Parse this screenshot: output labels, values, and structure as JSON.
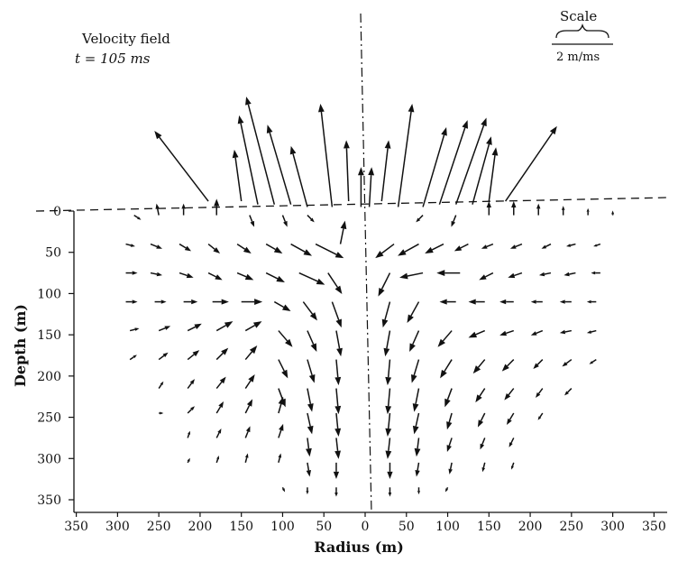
{
  "chart_data": {
    "type": "vector-field",
    "annotation": {
      "line1": "Velocity field",
      "line2": "t = 105 ms"
    },
    "scale": {
      "title": "Scale",
      "value_label": "2 m/ms",
      "speed": 2,
      "unit": "m/ms"
    },
    "xlabel": "Radius (m)",
    "ylabel": "Depth (m)",
    "x_ticks": [
      {
        "label": "350",
        "value": -350
      },
      {
        "label": "300",
        "value": -300
      },
      {
        "label": "250",
        "value": -250
      },
      {
        "label": "200",
        "value": -200
      },
      {
        "label": "150",
        "value": -150
      },
      {
        "label": "100",
        "value": -100
      },
      {
        "label": "50",
        "value": -50
      },
      {
        "label": "0",
        "value": 0
      },
      {
        "label": "50",
        "value": 50
      },
      {
        "label": "100",
        "value": 100
      },
      {
        "label": "150",
        "value": 150
      },
      {
        "label": "200",
        "value": 200
      },
      {
        "label": "250",
        "value": 250
      },
      {
        "label": "300",
        "value": 300
      },
      {
        "label": "350",
        "value": 350
      }
    ],
    "y_ticks": [
      {
        "label": "0",
        "value": 0
      },
      {
        "label": "50",
        "value": 50
      },
      {
        "label": "100",
        "value": 100
      },
      {
        "label": "150",
        "value": 150
      },
      {
        "label": "200",
        "value": 200
      },
      {
        "label": "250",
        "value": 250
      },
      {
        "label": "300",
        "value": 300
      },
      {
        "label": "350",
        "value": 350
      }
    ],
    "xlim": [
      -350,
      350
    ],
    "ylim": [
      0,
      350
    ],
    "ground_surface": "dashed line at depth 0",
    "symmetry_axis": "dash-dot line at radius 0",
    "vectors": [
      {
        "x": -190,
        "d": -12,
        "vr": -2.3,
        "vz": -3.0
      },
      {
        "x": -150,
        "d": -12,
        "vr": -0.3,
        "vz": -2.2
      },
      {
        "x": -130,
        "d": -8,
        "vr": -0.8,
        "vz": -3.8
      },
      {
        "x": -110,
        "d": -8,
        "vr": -1.2,
        "vz": -4.6
      },
      {
        "x": -90,
        "d": -8,
        "vr": -1.0,
        "vz": -3.4
      },
      {
        "x": -70,
        "d": -5,
        "vr": -0.7,
        "vz": -2.6
      },
      {
        "x": -40,
        "d": -5,
        "vr": -0.5,
        "vz": -4.4
      },
      {
        "x": -20,
        "d": -12,
        "vr": -0.1,
        "vz": -2.6
      },
      {
        "x": -5,
        "d": -5,
        "vr": 0.0,
        "vz": -1.7
      },
      {
        "x": 5,
        "d": -5,
        "vr": 0.1,
        "vz": -1.7
      },
      {
        "x": 20,
        "d": -12,
        "vr": 0.3,
        "vz": -2.6
      },
      {
        "x": 40,
        "d": -5,
        "vr": 0.6,
        "vz": -4.4
      },
      {
        "x": 70,
        "d": -5,
        "vr": 1.0,
        "vz": -3.4
      },
      {
        "x": 90,
        "d": -8,
        "vr": 1.2,
        "vz": -3.6
      },
      {
        "x": 110,
        "d": -8,
        "vr": 1.3,
        "vz": -3.7
      },
      {
        "x": 130,
        "d": -8,
        "vr": 0.8,
        "vz": -2.9
      },
      {
        "x": 150,
        "d": -12,
        "vr": 0.3,
        "vz": -2.3
      },
      {
        "x": 170,
        "d": -12,
        "vr": 2.2,
        "vz": -3.2
      },
      {
        "x": -280,
        "d": 5,
        "vr": 0.3,
        "vz": 0.2
      },
      {
        "x": -250,
        "d": 5,
        "vr": -0.1,
        "vz": -0.5
      },
      {
        "x": -220,
        "d": 5,
        "vr": 0.0,
        "vz": -0.5
      },
      {
        "x": -180,
        "d": 5,
        "vr": 0.0,
        "vz": -0.7
      },
      {
        "x": -140,
        "d": 5,
        "vr": 0.2,
        "vz": 0.5
      },
      {
        "x": -100,
        "d": 5,
        "vr": 0.2,
        "vz": 0.5
      },
      {
        "x": -70,
        "d": 5,
        "vr": 0.3,
        "vz": 0.3
      },
      {
        "x": 70,
        "d": 5,
        "vr": -0.3,
        "vz": 0.3
      },
      {
        "x": 110,
        "d": 5,
        "vr": -0.2,
        "vz": 0.5
      },
      {
        "x": 150,
        "d": 5,
        "vr": 0.0,
        "vz": -0.6
      },
      {
        "x": 180,
        "d": 5,
        "vr": 0.0,
        "vz": -0.6
      },
      {
        "x": 210,
        "d": 5,
        "vr": 0.0,
        "vz": -0.5
      },
      {
        "x": 240,
        "d": 5,
        "vr": 0.0,
        "vz": -0.4
      },
      {
        "x": 270,
        "d": 5,
        "vr": 0.0,
        "vz": -0.3
      },
      {
        "x": 300,
        "d": 5,
        "vr": 0.0,
        "vz": -0.2
      },
      {
        "x": -290,
        "d": 40,
        "vr": 0.4,
        "vz": 0.1
      },
      {
        "x": -260,
        "d": 40,
        "vr": 0.5,
        "vz": 0.2
      },
      {
        "x": -225,
        "d": 40,
        "vr": 0.5,
        "vz": 0.3
      },
      {
        "x": -190,
        "d": 40,
        "vr": 0.5,
        "vz": 0.4
      },
      {
        "x": -155,
        "d": 40,
        "vr": 0.6,
        "vz": 0.4
      },
      {
        "x": -120,
        "d": 40,
        "vr": 0.7,
        "vz": 0.4
      },
      {
        "x": -90,
        "d": 40,
        "vr": 0.9,
        "vz": 0.5
      },
      {
        "x": -60,
        "d": 40,
        "vr": 1.2,
        "vz": 0.6
      },
      {
        "x": -30,
        "d": 40,
        "vr": 0.2,
        "vz": -1.0
      },
      {
        "x": 35,
        "d": 40,
        "vr": -0.8,
        "vz": 0.6
      },
      {
        "x": 65,
        "d": 40,
        "vr": -0.9,
        "vz": 0.5
      },
      {
        "x": 95,
        "d": 40,
        "vr": -0.8,
        "vz": 0.4
      },
      {
        "x": 125,
        "d": 40,
        "vr": -0.6,
        "vz": 0.3
      },
      {
        "x": 155,
        "d": 40,
        "vr": -0.5,
        "vz": 0.2
      },
      {
        "x": 190,
        "d": 40,
        "vr": -0.5,
        "vz": 0.2
      },
      {
        "x": 225,
        "d": 40,
        "vr": -0.4,
        "vz": 0.2
      },
      {
        "x": 255,
        "d": 40,
        "vr": -0.4,
        "vz": 0.1
      },
      {
        "x": 285,
        "d": 40,
        "vr": -0.3,
        "vz": 0.1
      },
      {
        "x": -290,
        "d": 75,
        "vr": 0.5,
        "vz": 0.0
      },
      {
        "x": -260,
        "d": 75,
        "vr": 0.5,
        "vz": 0.1
      },
      {
        "x": -225,
        "d": 75,
        "vr": 0.6,
        "vz": 0.2
      },
      {
        "x": -190,
        "d": 75,
        "vr": 0.6,
        "vz": 0.3
      },
      {
        "x": -155,
        "d": 75,
        "vr": 0.7,
        "vz": 0.3
      },
      {
        "x": -120,
        "d": 75,
        "vr": 0.8,
        "vz": 0.4
      },
      {
        "x": -80,
        "d": 75,
        "vr": 1.1,
        "vz": 0.5
      },
      {
        "x": -45,
        "d": 75,
        "vr": 0.6,
        "vz": 0.9
      },
      {
        "x": 30,
        "d": 75,
        "vr": -0.5,
        "vz": 1.0
      },
      {
        "x": 70,
        "d": 75,
        "vr": -1.0,
        "vz": 0.2
      },
      {
        "x": 115,
        "d": 75,
        "vr": -1.0,
        "vz": 0.0
      },
      {
        "x": 155,
        "d": 75,
        "vr": -0.6,
        "vz": 0.3
      },
      {
        "x": 190,
        "d": 75,
        "vr": -0.6,
        "vz": 0.2
      },
      {
        "x": 225,
        "d": 75,
        "vr": -0.5,
        "vz": 0.1
      },
      {
        "x": 255,
        "d": 75,
        "vr": -0.5,
        "vz": 0.1
      },
      {
        "x": 285,
        "d": 75,
        "vr": -0.4,
        "vz": 0.0
      },
      {
        "x": -290,
        "d": 110,
        "vr": 0.5,
        "vz": 0.0
      },
      {
        "x": -255,
        "d": 110,
        "vr": 0.5,
        "vz": 0.0
      },
      {
        "x": -220,
        "d": 110,
        "vr": 0.6,
        "vz": 0.0
      },
      {
        "x": -185,
        "d": 110,
        "vr": 0.7,
        "vz": 0.0
      },
      {
        "x": -150,
        "d": 110,
        "vr": 0.9,
        "vz": 0.0
      },
      {
        "x": -110,
        "d": 110,
        "vr": 0.7,
        "vz": 0.4
      },
      {
        "x": -75,
        "d": 110,
        "vr": 0.6,
        "vz": 0.8
      },
      {
        "x": -40,
        "d": 110,
        "vr": 0.4,
        "vz": 1.1
      },
      {
        "x": 30,
        "d": 110,
        "vr": -0.3,
        "vz": 1.1
      },
      {
        "x": 65,
        "d": 110,
        "vr": -0.5,
        "vz": 0.9
      },
      {
        "x": 110,
        "d": 110,
        "vr": -0.7,
        "vz": 0.0
      },
      {
        "x": 145,
        "d": 110,
        "vr": -0.7,
        "vz": 0.0
      },
      {
        "x": 180,
        "d": 110,
        "vr": -0.6,
        "vz": 0.0
      },
      {
        "x": 215,
        "d": 110,
        "vr": -0.5,
        "vz": 0.0
      },
      {
        "x": 250,
        "d": 110,
        "vr": -0.5,
        "vz": 0.0
      },
      {
        "x": 280,
        "d": 110,
        "vr": -0.4,
        "vz": 0.0
      },
      {
        "x": -285,
        "d": 145,
        "vr": 0.4,
        "vz": -0.1
      },
      {
        "x": -250,
        "d": 145,
        "vr": 0.5,
        "vz": -0.2
      },
      {
        "x": -215,
        "d": 145,
        "vr": 0.6,
        "vz": -0.3
      },
      {
        "x": -180,
        "d": 145,
        "vr": 0.7,
        "vz": -0.4
      },
      {
        "x": -145,
        "d": 145,
        "vr": 0.7,
        "vz": -0.4
      },
      {
        "x": -105,
        "d": 145,
        "vr": 0.6,
        "vz": 0.7
      },
      {
        "x": -70,
        "d": 145,
        "vr": 0.4,
        "vz": 0.9
      },
      {
        "x": -35,
        "d": 145,
        "vr": 0.2,
        "vz": 1.1
      },
      {
        "x": 30,
        "d": 145,
        "vr": -0.2,
        "vz": 1.1
      },
      {
        "x": 65,
        "d": 145,
        "vr": -0.4,
        "vz": 0.9
      },
      {
        "x": 105,
        "d": 145,
        "vr": -0.6,
        "vz": 0.7
      },
      {
        "x": 145,
        "d": 145,
        "vr": -0.7,
        "vz": 0.3
      },
      {
        "x": 180,
        "d": 145,
        "vr": -0.6,
        "vz": 0.2
      },
      {
        "x": 215,
        "d": 145,
        "vr": -0.5,
        "vz": 0.2
      },
      {
        "x": 250,
        "d": 145,
        "vr": -0.5,
        "vz": 0.1
      },
      {
        "x": 280,
        "d": 145,
        "vr": -0.4,
        "vz": 0.1
      },
      {
        "x": -285,
        "d": 180,
        "vr": 0.3,
        "vz": -0.2
      },
      {
        "x": -250,
        "d": 180,
        "vr": 0.4,
        "vz": -0.3
      },
      {
        "x": -215,
        "d": 180,
        "vr": 0.5,
        "vz": -0.4
      },
      {
        "x": -180,
        "d": 180,
        "vr": 0.5,
        "vz": -0.5
      },
      {
        "x": -145,
        "d": 180,
        "vr": 0.5,
        "vz": -0.6
      },
      {
        "x": -105,
        "d": 180,
        "vr": 0.4,
        "vz": 0.8
      },
      {
        "x": -70,
        "d": 180,
        "vr": 0.3,
        "vz": 1.0
      },
      {
        "x": -35,
        "d": 180,
        "vr": 0.1,
        "vz": 1.1
      },
      {
        "x": 30,
        "d": 180,
        "vr": -0.1,
        "vz": 1.1
      },
      {
        "x": 65,
        "d": 180,
        "vr": -0.3,
        "vz": 1.0
      },
      {
        "x": 105,
        "d": 180,
        "vr": -0.5,
        "vz": 0.8
      },
      {
        "x": 145,
        "d": 180,
        "vr": -0.5,
        "vz": 0.6
      },
      {
        "x": 180,
        "d": 180,
        "vr": -0.5,
        "vz": 0.5
      },
      {
        "x": 215,
        "d": 180,
        "vr": -0.4,
        "vz": 0.4
      },
      {
        "x": 250,
        "d": 180,
        "vr": -0.4,
        "vz": 0.3
      },
      {
        "x": 280,
        "d": 180,
        "vr": -0.3,
        "vz": 0.2
      },
      {
        "x": -250,
        "d": 215,
        "vr": 0.2,
        "vz": -0.3
      },
      {
        "x": -215,
        "d": 215,
        "vr": 0.3,
        "vz": -0.4
      },
      {
        "x": -180,
        "d": 215,
        "vr": 0.4,
        "vz": -0.5
      },
      {
        "x": -145,
        "d": 215,
        "vr": 0.4,
        "vz": -0.6
      },
      {
        "x": -105,
        "d": 215,
        "vr": 0.3,
        "vz": 0.8
      },
      {
        "x": -70,
        "d": 215,
        "vr": 0.2,
        "vz": 1.0
      },
      {
        "x": -35,
        "d": 215,
        "vr": 0.1,
        "vz": 1.1
      },
      {
        "x": 30,
        "d": 215,
        "vr": -0.1,
        "vz": 1.1
      },
      {
        "x": 65,
        "d": 215,
        "vr": -0.2,
        "vz": 1.0
      },
      {
        "x": 105,
        "d": 215,
        "vr": -0.3,
        "vz": 0.8
      },
      {
        "x": 145,
        "d": 215,
        "vr": -0.4,
        "vz": 0.6
      },
      {
        "x": 180,
        "d": 215,
        "vr": -0.4,
        "vz": 0.5
      },
      {
        "x": 215,
        "d": 215,
        "vr": -0.3,
        "vz": 0.4
      },
      {
        "x": 250,
        "d": 215,
        "vr": -0.3,
        "vz": 0.3
      },
      {
        "x": -250,
        "d": 245,
        "vr": 0.2,
        "vz": 0.0
      },
      {
        "x": -215,
        "d": 245,
        "vr": 0.3,
        "vz": -0.3
      },
      {
        "x": -180,
        "d": 245,
        "vr": 0.3,
        "vz": -0.5
      },
      {
        "x": -145,
        "d": 245,
        "vr": 0.3,
        "vz": -0.6
      },
      {
        "x": -105,
        "d": 245,
        "vr": 0.2,
        "vz": -0.7
      },
      {
        "x": -70,
        "d": 245,
        "vr": 0.2,
        "vz": 0.9
      },
      {
        "x": -35,
        "d": 245,
        "vr": 0.1,
        "vz": 1.0
      },
      {
        "x": 30,
        "d": 245,
        "vr": -0.1,
        "vz": 1.0
      },
      {
        "x": 65,
        "d": 245,
        "vr": -0.2,
        "vz": 0.9
      },
      {
        "x": 105,
        "d": 245,
        "vr": -0.2,
        "vz": 0.7
      },
      {
        "x": 145,
        "d": 245,
        "vr": -0.3,
        "vz": 0.6
      },
      {
        "x": 180,
        "d": 245,
        "vr": -0.3,
        "vz": 0.5
      },
      {
        "x": 215,
        "d": 245,
        "vr": -0.2,
        "vz": 0.3
      },
      {
        "x": -215,
        "d": 275,
        "vr": 0.1,
        "vz": -0.3
      },
      {
        "x": -180,
        "d": 275,
        "vr": 0.2,
        "vz": -0.4
      },
      {
        "x": -145,
        "d": 275,
        "vr": 0.2,
        "vz": -0.5
      },
      {
        "x": -105,
        "d": 275,
        "vr": 0.2,
        "vz": -0.6
      },
      {
        "x": -70,
        "d": 275,
        "vr": 0.1,
        "vz": 0.8
      },
      {
        "x": -35,
        "d": 275,
        "vr": 0.1,
        "vz": 0.9
      },
      {
        "x": 30,
        "d": 275,
        "vr": -0.1,
        "vz": 0.9
      },
      {
        "x": 65,
        "d": 275,
        "vr": -0.1,
        "vz": 0.8
      },
      {
        "x": 105,
        "d": 275,
        "vr": -0.2,
        "vz": 0.6
      },
      {
        "x": 145,
        "d": 275,
        "vr": -0.2,
        "vz": 0.5
      },
      {
        "x": 180,
        "d": 275,
        "vr": -0.2,
        "vz": 0.4
      },
      {
        "x": -215,
        "d": 305,
        "vr": 0.1,
        "vz": -0.2
      },
      {
        "x": -180,
        "d": 305,
        "vr": 0.1,
        "vz": -0.3
      },
      {
        "x": -145,
        "d": 305,
        "vr": 0.1,
        "vz": -0.4
      },
      {
        "x": -105,
        "d": 305,
        "vr": 0.1,
        "vz": -0.4
      },
      {
        "x": -70,
        "d": 305,
        "vr": 0.1,
        "vz": 0.6
      },
      {
        "x": -35,
        "d": 305,
        "vr": 0.0,
        "vz": 0.7
      },
      {
        "x": 30,
        "d": 305,
        "vr": 0.0,
        "vz": 0.7
      },
      {
        "x": 65,
        "d": 305,
        "vr": -0.1,
        "vz": 0.6
      },
      {
        "x": 105,
        "d": 305,
        "vr": -0.1,
        "vz": 0.5
      },
      {
        "x": 145,
        "d": 305,
        "vr": -0.1,
        "vz": 0.4
      },
      {
        "x": 180,
        "d": 305,
        "vr": -0.1,
        "vz": 0.3
      },
      {
        "x": -100,
        "d": 335,
        "vr": 0.1,
        "vz": 0.2
      },
      {
        "x": -70,
        "d": 335,
        "vr": 0.0,
        "vz": 0.3
      },
      {
        "x": -35,
        "d": 335,
        "vr": 0.0,
        "vz": 0.4
      },
      {
        "x": 30,
        "d": 335,
        "vr": 0.0,
        "vz": 0.4
      },
      {
        "x": 65,
        "d": 335,
        "vr": 0.0,
        "vz": 0.3
      },
      {
        "x": 100,
        "d": 335,
        "vr": -0.1,
        "vz": 0.2
      }
    ]
  }
}
